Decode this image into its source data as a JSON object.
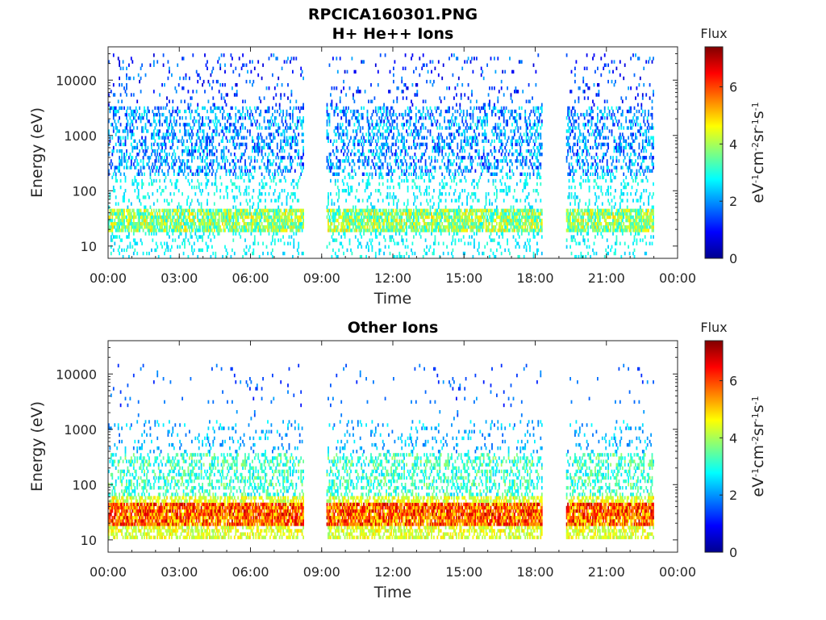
{
  "figure": {
    "title_line1": "RPCICA160301.PNG"
  },
  "chart_data": [
    {
      "type": "heatmap",
      "title": "H+ He++ Ions",
      "xlabel": "Time",
      "ylabel": "Energy (eV)",
      "x_tick_labels": [
        "00:00",
        "03:00",
        "06:00",
        "09:00",
        "12:00",
        "15:00",
        "18:00",
        "21:00",
        "00:00"
      ],
      "x_ticks_hours": [
        0,
        3,
        6,
        9,
        12,
        15,
        18,
        21,
        24
      ],
      "xlim_hours": [
        0,
        24
      ],
      "y_scale": "log",
      "y_tick_labels": [
        "10",
        "100",
        "1000",
        "10000"
      ],
      "y_ticks": [
        10,
        100,
        1000,
        10000
      ],
      "ylim": [
        6,
        40000
      ],
      "colorbar": {
        "title": "Flux",
        "label": "eV-1cm-2sr-1s-1",
        "tick_labels": [
          "0",
          "2",
          "4",
          "6"
        ],
        "ticks": [
          0,
          2,
          4,
          6
        ],
        "range": [
          0,
          7.4
        ],
        "colormap": "jet"
      },
      "data_coverage_hours": [
        [
          0.0,
          8.2
        ],
        [
          9.2,
          18.3
        ],
        [
          19.3,
          23.0
        ]
      ],
      "bands": [
        {
          "e_min": 17,
          "e_max": 45,
          "flux_min": 2.6,
          "flux_max": 5.0,
          "density": 0.8
        },
        {
          "e_min": 6,
          "e_max": 200,
          "flux_min": 2.3,
          "flux_max": 3.2,
          "density": 0.15
        },
        {
          "e_min": 200,
          "e_max": 3500,
          "flux_min": 1.0,
          "flux_max": 3.0,
          "density": 0.32
        },
        {
          "e_min": 400,
          "e_max": 900,
          "flux_min": 3.0,
          "flux_max": 4.8,
          "density": 0.12
        },
        {
          "e_min": 3500,
          "e_max": 30000,
          "flux_min": 0.6,
          "flux_max": 2.2,
          "density": 0.07
        }
      ]
    },
    {
      "type": "heatmap",
      "title": "Other Ions",
      "xlabel": "Time",
      "ylabel": "Energy (eV)",
      "x_tick_labels": [
        "00:00",
        "03:00",
        "06:00",
        "09:00",
        "12:00",
        "15:00",
        "18:00",
        "21:00",
        "00:00"
      ],
      "x_ticks_hours": [
        0,
        3,
        6,
        9,
        12,
        15,
        18,
        21,
        24
      ],
      "xlim_hours": [
        0,
        24
      ],
      "y_scale": "log",
      "y_tick_labels": [
        "10",
        "100",
        "1000",
        "10000"
      ],
      "y_ticks": [
        10,
        100,
        1000,
        10000
      ],
      "ylim": [
        6,
        40000
      ],
      "colorbar": {
        "title": "Flux",
        "label": "eV-1cm-2sr-1s-1",
        "tick_labels": [
          "0",
          "2",
          "4",
          "6"
        ],
        "ticks": [
          0,
          2,
          4,
          6
        ],
        "range": [
          0,
          7.4
        ],
        "colormap": "jet"
      },
      "data_coverage_hours": [
        [
          0.0,
          8.2
        ],
        [
          9.2,
          18.3
        ],
        [
          19.3,
          23.0
        ]
      ],
      "bands": [
        {
          "e_min": 18,
          "e_max": 45,
          "flux_min": 4.5,
          "flux_max": 7.0,
          "density": 0.9
        },
        {
          "e_min": 10,
          "e_max": 65,
          "flux_min": 3.8,
          "flux_max": 5.0,
          "density": 0.55
        },
        {
          "e_min": 40,
          "e_max": 350,
          "flux_min": 2.4,
          "flux_max": 4.0,
          "density": 0.35
        },
        {
          "e_min": 350,
          "e_max": 1500,
          "flux_min": 1.6,
          "flux_max": 2.8,
          "density": 0.1
        },
        {
          "e_min": 1500,
          "e_max": 15000,
          "flux_min": 1.0,
          "flux_max": 2.2,
          "density": 0.02
        }
      ]
    }
  ]
}
